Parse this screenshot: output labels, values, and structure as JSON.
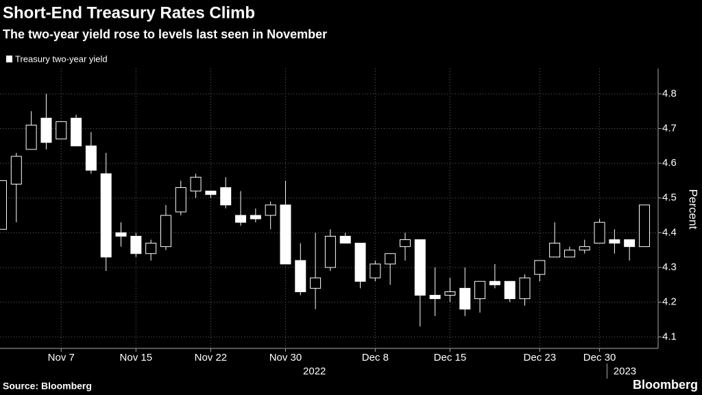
{
  "chart_data": {
    "type": "candlestick",
    "title": "Short-End Treasury Rates Climb",
    "subtitle": "The two-year yield rose to levels last seen in November",
    "y_label": "Percent",
    "source": "Source: Bloomberg",
    "brand": "Bloomberg",
    "categories": [
      null,
      null,
      null,
      null,
      "Nov 7",
      null,
      null,
      null,
      null,
      "Nov 15",
      null,
      null,
      null,
      null,
      "Nov 22",
      null,
      null,
      null,
      null,
      "Nov 30",
      null,
      null,
      null,
      null,
      null,
      "Dec 8",
      null,
      null,
      null,
      null,
      "Dec 15",
      null,
      null,
      null,
      null,
      null,
      "Dec 23",
      null,
      null,
      null,
      "Dec 30",
      null,
      null,
      null
    ],
    "x_years": [
      {
        "label": "2022",
        "from": 0
      },
      {
        "label": "2023",
        "from": 41
      }
    ],
    "series": [
      {
        "name": "Treasury two-year yield",
        "color": "#ffffff",
        "open": [
          4.41,
          4.54,
          4.64,
          4.73,
          4.67,
          4.73,
          4.65,
          4.57,
          4.4,
          4.39,
          4.34,
          4.36,
          4.46,
          4.52,
          4.52,
          4.53,
          4.45,
          4.45,
          4.45,
          4.48,
          4.32,
          4.24,
          4.3,
          4.39,
          4.37,
          4.27,
          4.31,
          4.36,
          4.38,
          4.22,
          4.22,
          4.24,
          4.21,
          4.26,
          4.26,
          4.21,
          4.28,
          4.33,
          4.33,
          4.35,
          4.37,
          4.38,
          4.38,
          4.36
        ],
        "high": [
          4.55,
          4.63,
          4.75,
          4.8,
          4.72,
          4.74,
          4.69,
          4.63,
          4.43,
          4.4,
          4.38,
          4.48,
          4.55,
          4.57,
          4.52,
          4.56,
          4.52,
          4.47,
          4.49,
          4.55,
          4.37,
          4.4,
          4.41,
          4.4,
          4.37,
          4.32,
          4.34,
          4.4,
          4.38,
          4.3,
          4.27,
          4.3,
          4.26,
          4.31,
          4.26,
          4.28,
          4.32,
          4.43,
          4.36,
          4.38,
          4.44,
          4.41,
          4.38,
          4.48
        ],
        "low": [
          4.41,
          4.43,
          4.64,
          4.64,
          4.67,
          4.65,
          4.57,
          4.29,
          4.36,
          4.33,
          4.32,
          4.35,
          4.45,
          4.5,
          4.5,
          4.47,
          4.42,
          4.43,
          4.41,
          4.31,
          4.22,
          4.18,
          4.29,
          4.37,
          4.24,
          4.26,
          4.25,
          4.32,
          4.13,
          4.16,
          4.2,
          4.16,
          4.17,
          4.24,
          4.2,
          4.19,
          4.26,
          4.33,
          4.33,
          4.34,
          4.37,
          4.34,
          4.32,
          4.36
        ],
        "close": [
          4.55,
          4.62,
          4.71,
          4.66,
          4.72,
          4.65,
          4.58,
          4.33,
          4.39,
          4.34,
          4.37,
          4.45,
          4.53,
          4.56,
          4.51,
          4.48,
          4.43,
          4.44,
          4.48,
          4.31,
          4.23,
          4.27,
          4.39,
          4.37,
          4.26,
          4.31,
          4.34,
          4.38,
          4.22,
          4.21,
          4.23,
          4.18,
          4.26,
          4.25,
          4.21,
          4.27,
          4.32,
          4.37,
          4.35,
          4.36,
          4.43,
          4.37,
          4.36,
          4.48
        ]
      }
    ],
    "ylim": [
      4.067,
      4.853
    ],
    "yticks": [
      {
        "value": 4.1,
        "label": "4.1"
      },
      {
        "value": 4.2,
        "label": "4.2"
      },
      {
        "value": 4.3,
        "label": "4.3"
      },
      {
        "value": 4.4,
        "label": "4.4"
      },
      {
        "value": 4.5,
        "label": "4.5"
      },
      {
        "value": 4.6,
        "label": "4.6"
      },
      {
        "value": 4.7,
        "label": "4.7"
      },
      {
        "value": 4.8,
        "label": "4.8"
      }
    ],
    "grid": true
  }
}
